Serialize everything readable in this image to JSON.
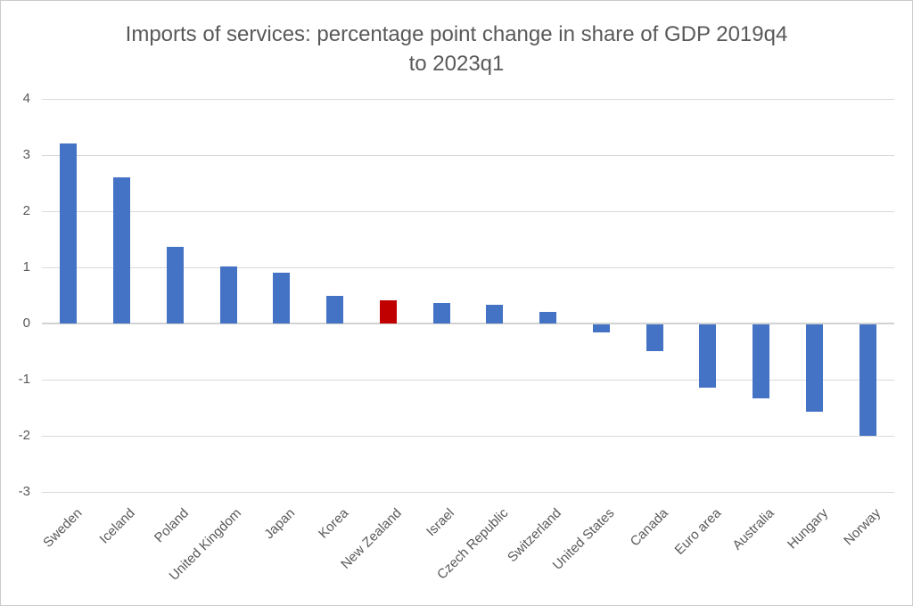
{
  "chart_data": {
    "type": "bar",
    "title": "Imports of services: percentage point change in share of GDP 2019q4 to 2023q1",
    "title_lines": [
      "Imports of services: percentage point change in share of GDP 2019q4",
      "to 2023q1"
    ],
    "categories": [
      "Sweden",
      "Iceland",
      "Poland",
      "United Kingdom",
      "Japan",
      "Korea",
      "New Zealand",
      "Israel",
      "Czech Republic",
      "Switzerland",
      "United States",
      "Canada",
      "Euro area",
      "Australia",
      "Hungary",
      "Norway"
    ],
    "values": [
      3.2,
      2.6,
      1.37,
      1.02,
      0.9,
      0.5,
      0.41,
      0.36,
      0.34,
      0.21,
      -0.14,
      -0.47,
      -1.12,
      -1.31,
      -1.55,
      -1.98
    ],
    "highlight_category": "New Zealand",
    "bar_color": "#4472C4",
    "highlight_color": "#C00000",
    "series_unit": "percentage points",
    "xlabel": "",
    "ylabel": "",
    "ylim": [
      -3,
      4
    ],
    "yticks": [
      4,
      3,
      2,
      1,
      0,
      -1,
      -2,
      -3
    ],
    "grid": true,
    "legend": "none",
    "gridline_color": "#D9D9D9",
    "text_color": "#595959"
  }
}
